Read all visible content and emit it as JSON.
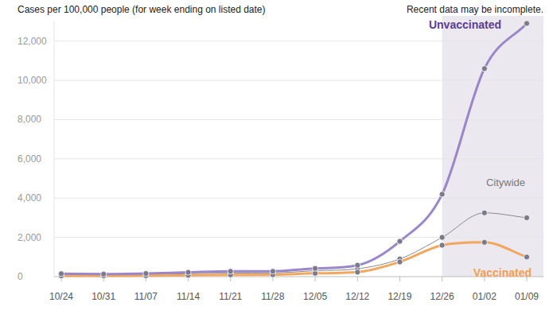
{
  "chart_data": {
    "type": "line",
    "title": "Cases per 100,000 people (for week ending on listed date)",
    "annotations": [
      {
        "text": "Recent data may be incomplete.",
        "x_start": "12/26",
        "x_end": "01/09"
      }
    ],
    "categories": [
      "10/24",
      "10/31",
      "11/07",
      "11/14",
      "11/21",
      "11/28",
      "12/05",
      "12/12",
      "12/19",
      "12/26",
      "01/02",
      "01/09"
    ],
    "series": [
      {
        "name": "Unvaccinated",
        "color": "#9a86c8",
        "values": [
          150,
          130,
          160,
          220,
          270,
          270,
          420,
          580,
          1800,
          4200,
          10600,
          12900
        ]
      },
      {
        "name": "Citywide",
        "color": "#8a8a8a",
        "values": [
          100,
          90,
          110,
          150,
          180,
          190,
          300,
          400,
          900,
          2000,
          3250,
          3000
        ]
      },
      {
        "name": "Vaccinated",
        "color": "#f2a65e",
        "values": [
          40,
          40,
          50,
          70,
          90,
          100,
          170,
          230,
          750,
          1600,
          1750,
          1000
        ]
      }
    ],
    "ylim": [
      0,
      13000
    ],
    "yticks": [
      0,
      {
        "value": 2000,
        "label": "2,000"
      },
      {
        "value": 4000,
        "label": "4,000"
      },
      {
        "value": 6000,
        "label": "6,000"
      },
      {
        "value": 8000,
        "label": "8,000"
      },
      {
        "value": 10000,
        "label": "10,000"
      },
      {
        "value": 12000,
        "label": "12,000"
      }
    ],
    "grid": true,
    "marker": "circle"
  }
}
